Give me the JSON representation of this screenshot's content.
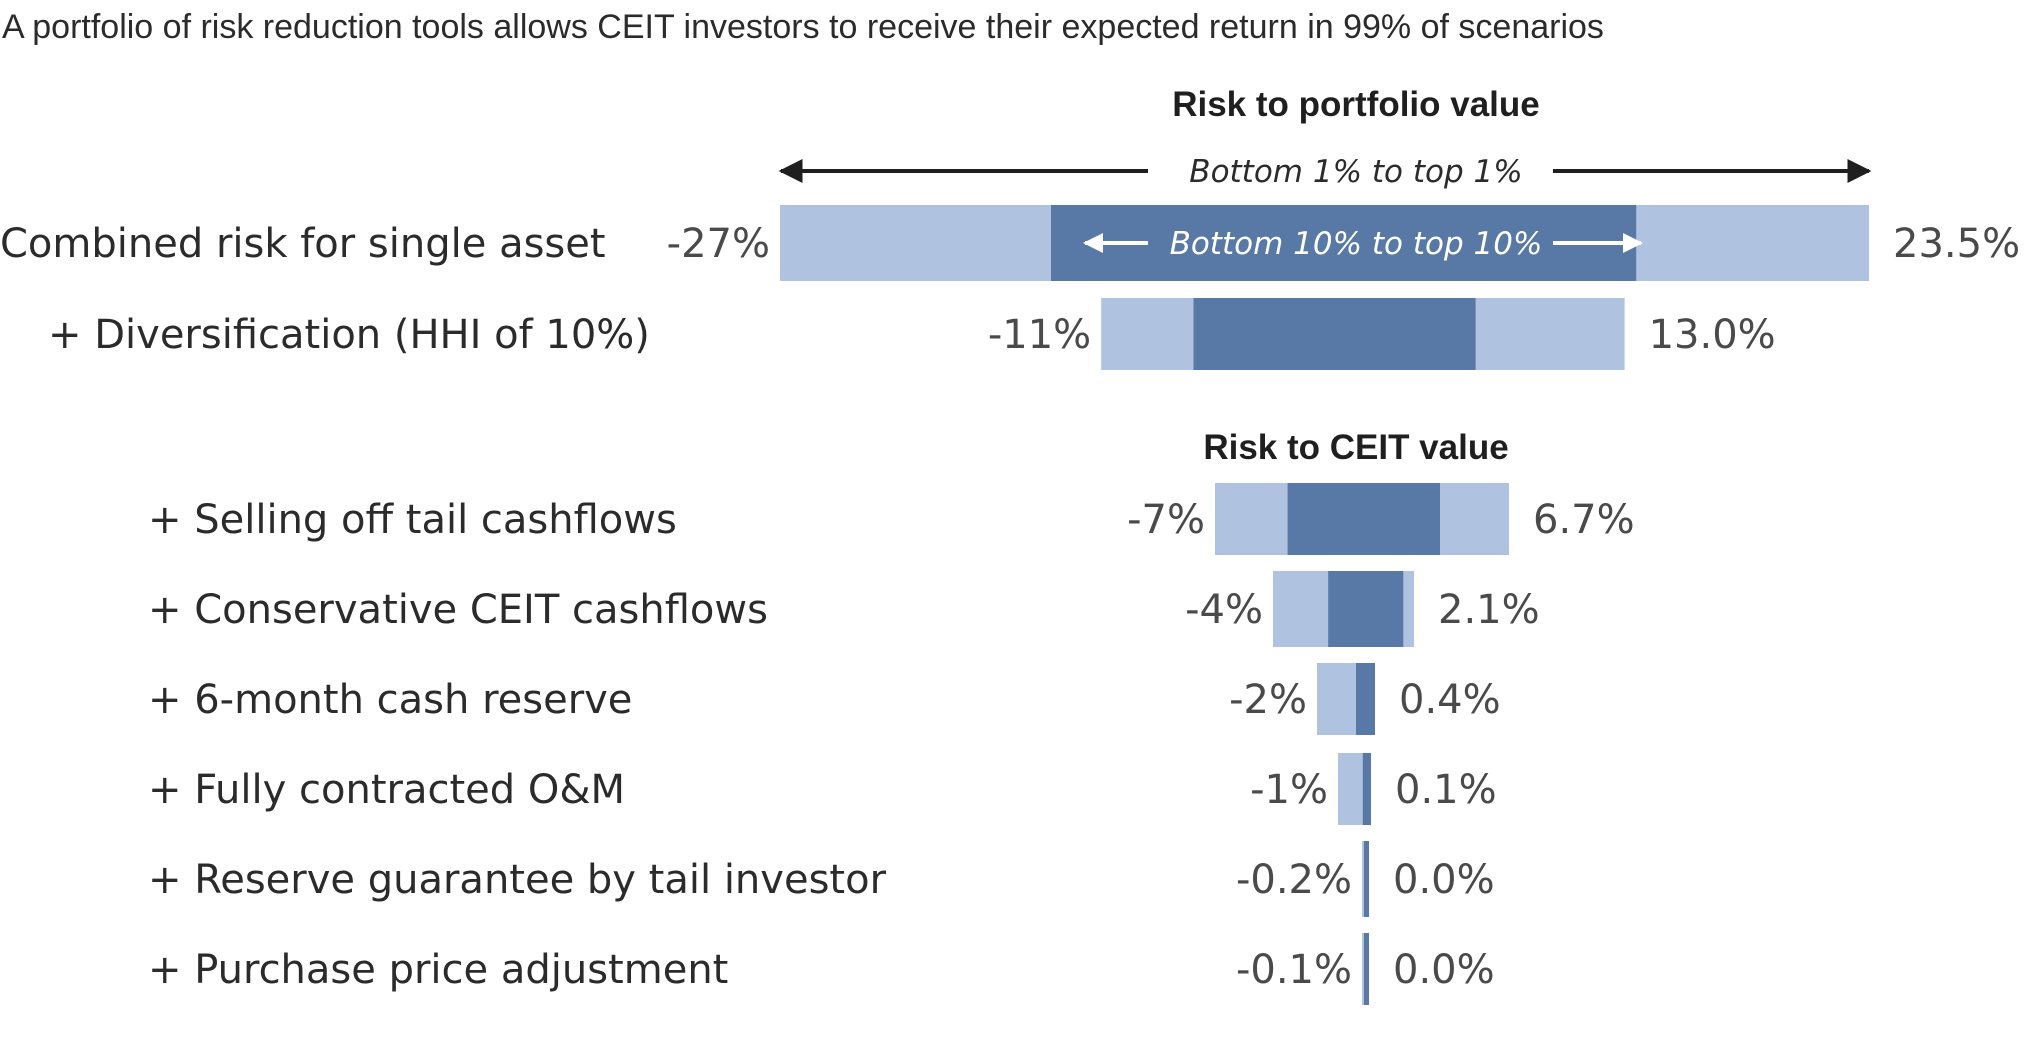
{
  "chart_data": {
    "type": "bar",
    "title": "A portfolio of risk reduction tools allows CEIT investors to receive their expected return in 99% of scenarios",
    "sections": [
      {
        "title": "Risk to portfolio value"
      },
      {
        "title": "Risk to CEIT value"
      }
    ],
    "annotations": {
      "outer_range": "Bottom 1% to top 1%",
      "inner_range": "Bottom 10% to top 10%"
    },
    "colors": {
      "outer": "#afc3e0",
      "inner": "#5878a5",
      "arrow": "#1f1f1f"
    },
    "rows": [
      {
        "label": "Combined risk for single asset",
        "low_label": "-27%",
        "high_label": "23.5%",
        "low": -27,
        "high": 23.5,
        "inner_low": -13.5,
        "inner_high": 13.5,
        "section": 0
      },
      {
        "label": "+ Diversification (HHI of 10%)",
        "low_label": "-11%",
        "high_label": "13.0%",
        "low": -11,
        "high": 13.0,
        "inner_low": -6.4,
        "inner_high": 6.6,
        "section": 0
      },
      {
        "label": "+ Selling off tail cashflows",
        "low_label": "-7%",
        "high_label": "6.7%",
        "low": -7,
        "high": 6.7,
        "inner_low": -3.7,
        "inner_high": 3.4,
        "section": 1
      },
      {
        "label": "+ Conservative CEIT cashflows",
        "low_label": "-4%",
        "high_label": "2.1%",
        "low": -4,
        "high": 2.1,
        "inner_low": -1.7,
        "inner_high": 1.6,
        "section": 1
      },
      {
        "label": "+ 6-month cash reserve",
        "low_label": "-2%",
        "high_label": "0.4%",
        "low": -2,
        "high": 0.4,
        "inner_low": -0.5,
        "inner_high": 0.4,
        "section": 1
      },
      {
        "label": "+ Fully contracted O&M",
        "low_label": "-1%",
        "high_label": "0.1%",
        "low": -1,
        "high": 0.1,
        "inner_low": -0.2,
        "inner_high": 0.1,
        "section": 1
      },
      {
        "label": "+ Reserve guarantee by tail investor",
        "low_label": "-0.2%",
        "high_label": "0.0%",
        "low": -0.2,
        "high": 0.0,
        "inner_low": -0.1,
        "inner_high": 0.0,
        "section": 1
      },
      {
        "label": "+ Purchase price adjustment",
        "low_label": "-0.1%",
        "high_label": "0.0%",
        "low": -0.1,
        "high": 0.0,
        "inner_low": -0.05,
        "inner_high": 0.0,
        "section": 1
      }
    ]
  }
}
